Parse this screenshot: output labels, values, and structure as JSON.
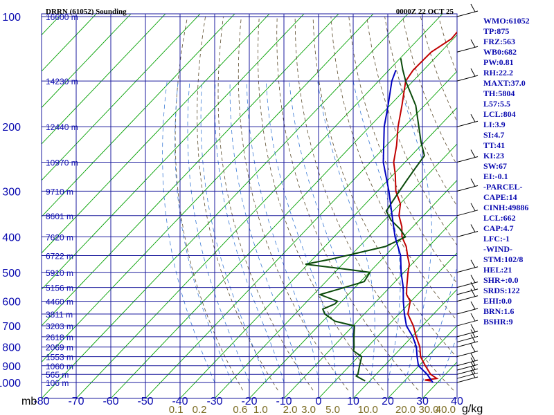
{
  "colors": {
    "isobar": "#1a1a9c",
    "isotherm_vertical": "#1a1a9c",
    "skewed_isotherm": "#00a000",
    "dry_adiabat": "#5a4a2a",
    "moist_adiabat": "#3a7ad6",
    "temperature": "#c00000",
    "dewpoint": "#0a4a0a",
    "parcel": "#0000c0",
    "text": "#0a0ab0",
    "mixing_label": "#7a6a20",
    "wind": "#000000"
  },
  "chart_data": {
    "type": "line",
    "title": "DRRN (61052) Sounding",
    "valid_time": "0000Z 22 OCT 25",
    "y_axis_unit": "mb",
    "x_axis_unit": "C",
    "mixing_unit": "g/kg",
    "xlim": [
      -80,
      40
    ],
    "ylim": [
      1000,
      100
    ],
    "pressure_levels": [
      100,
      200,
      300,
      400,
      500,
      600,
      700,
      800,
      900,
      1000
    ],
    "pressure_labels": [
      "100",
      "200",
      "300",
      "400",
      "500",
      "600",
      "700",
      "800",
      "900",
      "1000"
    ],
    "x_ticks": [
      -80,
      -70,
      -60,
      -50,
      -40,
      -30,
      -20,
      -10,
      0,
      10,
      20,
      30,
      40
    ],
    "x_tick_labels": [
      "-80",
      "-70",
      "-60",
      "-50",
      "-40",
      "-30",
      "-20",
      "-10",
      "0",
      "10",
      "20",
      "30",
      "40"
    ],
    "height_labels": [
      {
        "p": 100,
        "label": "16600 m"
      },
      {
        "p": 150,
        "label": "14230 m"
      },
      {
        "p": 200,
        "label": "12440 m"
      },
      {
        "p": 250,
        "label": "10970 m"
      },
      {
        "p": 300,
        "label": "9710 m"
      },
      {
        "p": 350,
        "label": "8601 m"
      },
      {
        "p": 400,
        "label": "7620 m"
      },
      {
        "p": 450,
        "label": "6722 m"
      },
      {
        "p": 500,
        "label": "5910 m"
      },
      {
        "p": 550,
        "label": "5156 m"
      },
      {
        "p": 600,
        "label": "4460 m"
      },
      {
        "p": 650,
        "label": "3811 m"
      },
      {
        "p": 700,
        "label": "3203 m"
      },
      {
        "p": 750,
        "label": "2618 m"
      },
      {
        "p": 800,
        "label": "2069 m"
      },
      {
        "p": 850,
        "label": "1553 m"
      },
      {
        "p": 900,
        "label": "1060 m"
      },
      {
        "p": 950,
        "label": "565 m"
      },
      {
        "p": 1000,
        "label": "106 m"
      }
    ],
    "mixing_ratios": [
      0.1,
      0.2,
      0.6,
      1.0,
      2.0,
      3.0,
      5.0,
      10.0,
      20.0,
      30.0,
      40.0
    ],
    "mixing_ratio_labels": [
      "0.1",
      "0.2",
      "0.6",
      "1.0",
      "2.0",
      "3.0",
      "5.0",
      "10.0",
      "20.0",
      "30.0",
      "40.0"
    ],
    "series": [
      {
        "name": "Temperature",
        "points": [
          [
            990,
            32
          ],
          [
            985,
            30
          ],
          [
            975,
            33
          ],
          [
            950,
            30
          ],
          [
            900,
            26
          ],
          [
            850,
            22
          ],
          [
            800,
            19
          ],
          [
            750,
            15
          ],
          [
            700,
            11
          ],
          [
            650,
            6
          ],
          [
            600,
            3
          ],
          [
            575,
            0
          ],
          [
            550,
            -2
          ],
          [
            500,
            -6
          ],
          [
            475,
            -8
          ],
          [
            450,
            -11
          ],
          [
            425,
            -14
          ],
          [
            400,
            -18
          ],
          [
            375,
            -21
          ],
          [
            350,
            -25
          ],
          [
            325,
            -28
          ],
          [
            300,
            -33
          ],
          [
            270,
            -38
          ],
          [
            250,
            -42
          ],
          [
            225,
            -46
          ],
          [
            200,
            -51
          ],
          [
            175,
            -56
          ],
          [
            150,
            -62
          ],
          [
            140,
            -63
          ],
          [
            125,
            -63
          ],
          [
            115,
            -61
          ],
          [
            100,
            -62
          ]
        ]
      },
      {
        "name": "Dewpoint",
        "points": [
          [
            990,
            13
          ],
          [
            975,
            11
          ],
          [
            960,
            9
          ],
          [
            950,
            9
          ],
          [
            900,
            7
          ],
          [
            850,
            5
          ],
          [
            820,
            1
          ],
          [
            800,
            0
          ],
          [
            750,
            -3
          ],
          [
            700,
            -6
          ],
          [
            680,
            -13
          ],
          [
            650,
            -18
          ],
          [
            630,
            -20
          ],
          [
            610,
            -18
          ],
          [
            600,
            -18
          ],
          [
            575,
            -25
          ],
          [
            550,
            -20
          ],
          [
            530,
            -16
          ],
          [
            500,
            -17
          ],
          [
            490,
            -25
          ],
          [
            475,
            -38
          ],
          [
            460,
            -32
          ],
          [
            425,
            -20
          ],
          [
            400,
            -17
          ],
          [
            380,
            -21
          ],
          [
            360,
            -26
          ],
          [
            340,
            -30
          ],
          [
            320,
            -31
          ],
          [
            300,
            -32
          ],
          [
            280,
            -33
          ],
          [
            260,
            -34
          ],
          [
            240,
            -35
          ],
          [
            220,
            -40
          ],
          [
            200,
            -45
          ],
          [
            175,
            -52
          ],
          [
            150,
            -62
          ],
          [
            140,
            -66
          ],
          [
            130,
            -70
          ]
        ]
      },
      {
        "name": "Parcel",
        "points": [
          [
            1000,
            33
          ],
          [
            950,
            29
          ],
          [
            900,
            24
          ],
          [
            850,
            21
          ],
          [
            800,
            18
          ],
          [
            750,
            14
          ],
          [
            700,
            9
          ],
          [
            650,
            5
          ],
          [
            600,
            1
          ],
          [
            550,
            -3
          ],
          [
            500,
            -8
          ],
          [
            450,
            -13
          ],
          [
            400,
            -20
          ],
          [
            350,
            -27
          ],
          [
            300,
            -35
          ],
          [
            250,
            -45
          ],
          [
            200,
            -55
          ],
          [
            175,
            -60
          ],
          [
            150,
            -66
          ],
          [
            140,
            -68
          ]
        ]
      }
    ],
    "wind_pressures": [
      1000,
      975,
      950,
      925,
      900,
      850,
      800,
      775,
      750,
      700,
      650,
      600,
      575,
      550,
      500,
      400,
      350,
      300,
      250,
      200,
      150,
      125,
      100
    ],
    "indices": [
      "WMO:61052",
      "TP:875",
      "FRZ:563",
      "WB0:682",
      "PW:0.81",
      "RH:22.2",
      "MAXT:37.0",
      "TH:5804",
      "L57:5.5",
      "LCL:804",
      "LI:3.9",
      "SI:4.7",
      "TT:41",
      "KI:23",
      "SW:67",
      "EI:-0.1",
      "-PARCEL-",
      "CAPE:14",
      "CINH:49886",
      "LCL:662",
      "CAP:4.7",
      "LFC:-1",
      "-WIND-",
      "STM:102/8",
      "HEL:21",
      "SHR+:0.0",
      "SRDS:122",
      "EHI:0.0",
      "BRN:1.6",
      "BSHR:9"
    ]
  }
}
